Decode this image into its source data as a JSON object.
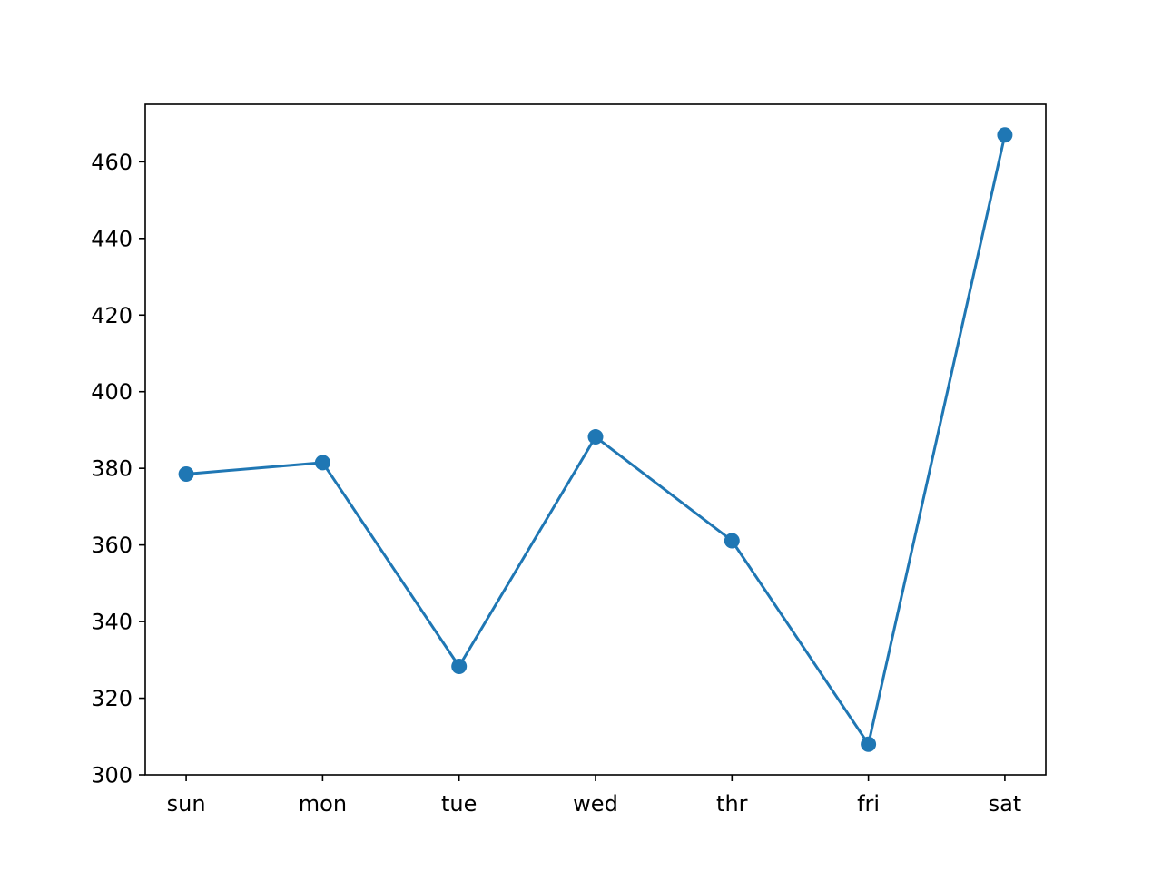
{
  "chart_data": {
    "type": "line",
    "title": "",
    "xlabel": "",
    "ylabel": "",
    "categories": [
      "sun",
      "mon",
      "tue",
      "wed",
      "thr",
      "fri",
      "sat"
    ],
    "series": [
      {
        "values": [
          378.5,
          381.5,
          328.3,
          388.2,
          361.1,
          308.0,
          467.0
        ],
        "color": "#1f77b4",
        "marker": "circle"
      }
    ],
    "ylim": [
      300,
      475
    ],
    "yticks": [
      300,
      320,
      340,
      360,
      380,
      400,
      420,
      440,
      460
    ],
    "grid": false,
    "legend": "none"
  }
}
